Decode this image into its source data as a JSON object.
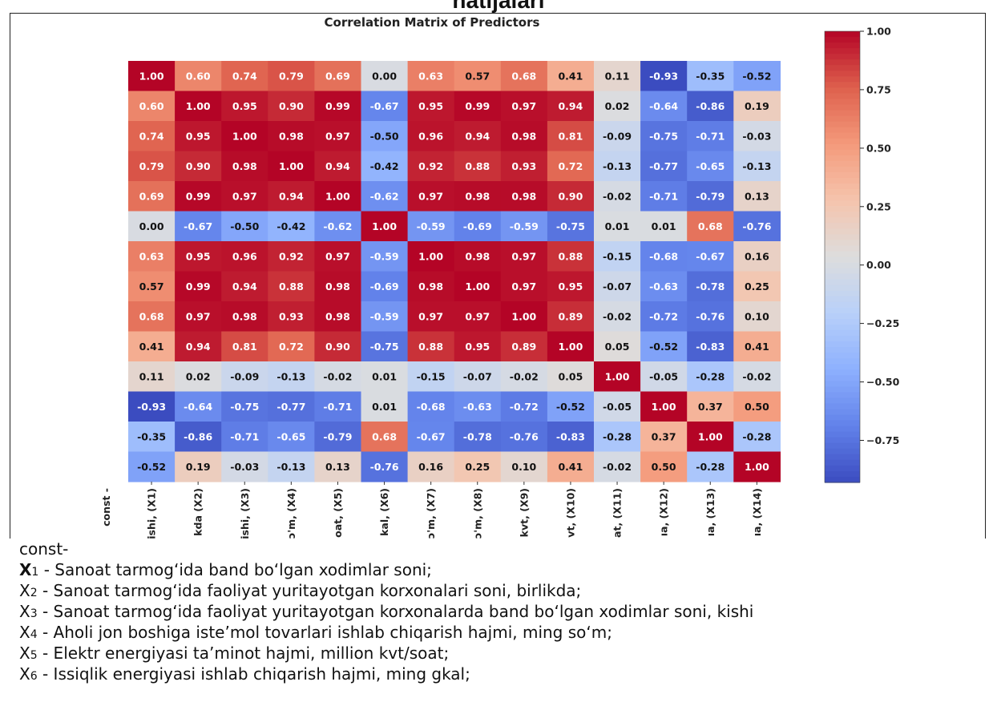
{
  "page": {
    "heading": "natijalari"
  },
  "chart_data": {
    "type": "heatmap",
    "title": "Correlation Matrix of Predictors",
    "ylabel_partial": "const -",
    "x_tick_labels": [
      "ishi, (X1)",
      "kda (X2)",
      "ishi, (X3)",
      "ɔ'm, (X4)",
      "oat, (X5)",
      "kal, (X6)",
      "ɔ'm, (X7)",
      "ɔ'm, (X8)",
      "kvt, (X9)",
      "vt, (X10)",
      "at, (X11)",
      "ıa, (X12)",
      "ıa, (X13)",
      "ıa, (X14)"
    ],
    "colorbar": {
      "colormap": "coolwarm",
      "vmin": -0.93,
      "vmax": 1.0,
      "ticks": [
        "1.00",
        "0.75",
        "0.50",
        "0.25",
        "0.00",
        "−0.25",
        "−0.50",
        "−0.75"
      ],
      "tick_values": [
        1.0,
        0.75,
        0.5,
        0.25,
        0.0,
        -0.25,
        -0.5,
        -0.75
      ]
    },
    "matrix": [
      [
        1.0,
        0.6,
        0.74,
        0.79,
        0.69,
        0.0,
        0.63,
        0.57,
        0.68,
        0.41,
        0.11,
        -0.93,
        -0.35,
        -0.52
      ],
      [
        0.6,
        1.0,
        0.95,
        0.9,
        0.99,
        -0.67,
        0.95,
        0.99,
        0.97,
        0.94,
        0.02,
        -0.64,
        -0.86,
        0.19
      ],
      [
        0.74,
        0.95,
        1.0,
        0.98,
        0.97,
        -0.5,
        0.96,
        0.94,
        0.98,
        0.81,
        -0.09,
        -0.75,
        -0.71,
        -0.03
      ],
      [
        0.79,
        0.9,
        0.98,
        1.0,
        0.94,
        -0.42,
        0.92,
        0.88,
        0.93,
        0.72,
        -0.13,
        -0.77,
        -0.65,
        -0.13
      ],
      [
        0.69,
        0.99,
        0.97,
        0.94,
        1.0,
        -0.62,
        0.97,
        0.98,
        0.98,
        0.9,
        -0.02,
        -0.71,
        -0.79,
        0.13
      ],
      [
        0.0,
        -0.67,
        -0.5,
        -0.42,
        -0.62,
        1.0,
        -0.59,
        -0.69,
        -0.59,
        -0.75,
        0.01,
        0.01,
        0.68,
        -0.76
      ],
      [
        0.63,
        0.95,
        0.96,
        0.92,
        0.97,
        -0.59,
        1.0,
        0.98,
        0.97,
        0.88,
        -0.15,
        -0.68,
        -0.67,
        0.16
      ],
      [
        0.57,
        0.99,
        0.94,
        0.88,
        0.98,
        -0.69,
        0.98,
        1.0,
        0.97,
        0.95,
        -0.07,
        -0.63,
        -0.78,
        0.25
      ],
      [
        0.68,
        0.97,
        0.98,
        0.93,
        0.98,
        -0.59,
        0.97,
        0.97,
        1.0,
        0.89,
        -0.02,
        -0.72,
        -0.76,
        0.1
      ],
      [
        0.41,
        0.94,
        0.81,
        0.72,
        0.9,
        -0.75,
        0.88,
        0.95,
        0.89,
        1.0,
        0.05,
        -0.52,
        -0.83,
        0.41
      ],
      [
        0.11,
        0.02,
        -0.09,
        -0.13,
        -0.02,
        0.01,
        -0.15,
        -0.07,
        -0.02,
        0.05,
        1.0,
        -0.05,
        -0.28,
        -0.02
      ],
      [
        -0.93,
        -0.64,
        -0.75,
        -0.77,
        -0.71,
        0.01,
        -0.68,
        -0.63,
        -0.72,
        -0.52,
        -0.05,
        1.0,
        0.37,
        0.5
      ],
      [
        -0.35,
        -0.86,
        -0.71,
        -0.65,
        -0.79,
        0.68,
        -0.67,
        -0.78,
        -0.76,
        -0.83,
        -0.28,
        0.37,
        1.0,
        -0.28
      ],
      [
        -0.52,
        0.19,
        -0.03,
        -0.13,
        0.13,
        -0.76,
        0.16,
        0.25,
        0.1,
        0.41,
        -0.02,
        0.5,
        -0.28,
        1.0
      ]
    ]
  },
  "legend": {
    "const_label": "const-",
    "items": [
      {
        "var": "X",
        "sub": "1",
        "text": " - Sanoat tarmog‘ida band bo‘lgan xodimlar soni;"
      },
      {
        "var": "X",
        "sub": "2",
        "text": " - Sanoat tarmog‘ida faoliyat yuritayotgan korxonalari soni, birlikda;"
      },
      {
        "var": "X",
        "sub": "3",
        "text": " - Sanoat tarmog‘ida faoliyat yuritayotgan korxonalarda  band bo‘lgan xodimlar soni, kishi"
      },
      {
        "var": " X",
        "sub": "4",
        "text": " - Aholi jon boshiga iste’mol tovarlari ishlab chiqarish hajmi, ming so‘m;"
      },
      {
        "var": "X",
        "sub": "5",
        "text": " - Elektr energiyasi ta’minot  hajmi, million kvt/soat;"
      },
      {
        "var": "X",
        "sub": "6",
        "text": " - Issiqlik energiyasi  ishlab chiqarish hajmi, ming gkal;"
      }
    ]
  }
}
